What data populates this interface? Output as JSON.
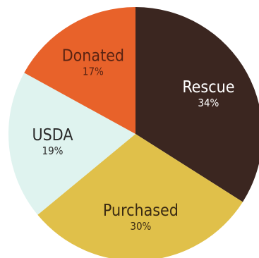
{
  "chart_data": {
    "type": "pie",
    "title": "",
    "slices": [
      {
        "label": "Rescue",
        "value": 34,
        "display": "34%",
        "color": "#3b2620",
        "text_color": "#ffffff"
      },
      {
        "label": "Purchased",
        "value": 30,
        "display": "30%",
        "color": "#e0c04a",
        "text_color": "#3a2a12"
      },
      {
        "label": "USDA",
        "value": 19,
        "display": "19%",
        "color": "#dff3ef",
        "text_color": "#2a2a2a"
      },
      {
        "label": "Donated",
        "value": 17,
        "display": "17%",
        "color": "#e8622a",
        "text_color": "#5a2312"
      }
    ],
    "start_angle_deg": 0,
    "direction": "clockwise",
    "legend": "none",
    "labels_inside_slices": true
  }
}
